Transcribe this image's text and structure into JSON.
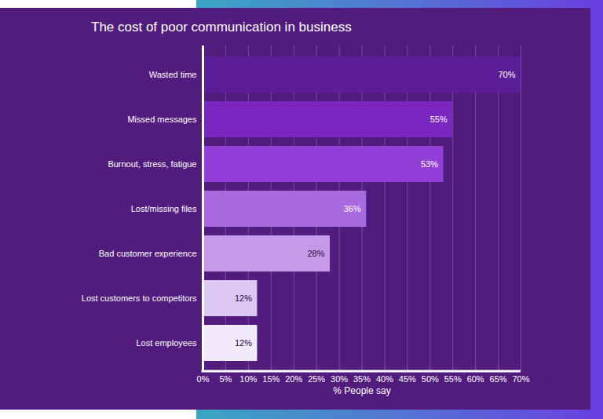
{
  "chart_data": {
    "type": "bar",
    "orientation": "horizontal",
    "title": "The cost of poor communication in business",
    "x_label": "% People say",
    "categories": [
      "Wasted time",
      "Missed messages",
      "Burnout, stress, fatigue",
      "Lost/missing files",
      "Bad customer experience",
      "Lost customers to competitors",
      "Lost employees"
    ],
    "values": [
      70,
      55,
      53,
      36,
      28,
      12,
      12
    ],
    "value_labels": [
      "70%",
      "55%",
      "53%",
      "36%",
      "28%",
      "12%",
      "12%"
    ],
    "colors": [
      "#5b1e96",
      "#7a27bf",
      "#913fd6",
      "#a86ade",
      "#c49ae8",
      "#dcc6f2",
      "#f2e9fb"
    ],
    "xlim": [
      0,
      70
    ],
    "xticks": [
      {
        "value": 0,
        "label": "0%"
      },
      {
        "value": 5,
        "label": "5%"
      },
      {
        "value": 10,
        "label": "10%"
      },
      {
        "value": 15,
        "label": "15%"
      },
      {
        "value": 20,
        "label": "20%"
      },
      {
        "value": 25,
        "label": "25%"
      },
      {
        "value": 30,
        "label": "30%"
      },
      {
        "value": 35,
        "label": "35%"
      },
      {
        "value": 40,
        "label": "40%"
      },
      {
        "value": 45,
        "label": "45%"
      },
      {
        "value": 50,
        "label": "50%"
      },
      {
        "value": 55,
        "label": "55%"
      },
      {
        "value": 60,
        "label": "60%"
      },
      {
        "value": 65,
        "label": "65%"
      },
      {
        "value": 70,
        "label": "70%"
      }
    ],
    "grid": true,
    "data_labels": true
  }
}
